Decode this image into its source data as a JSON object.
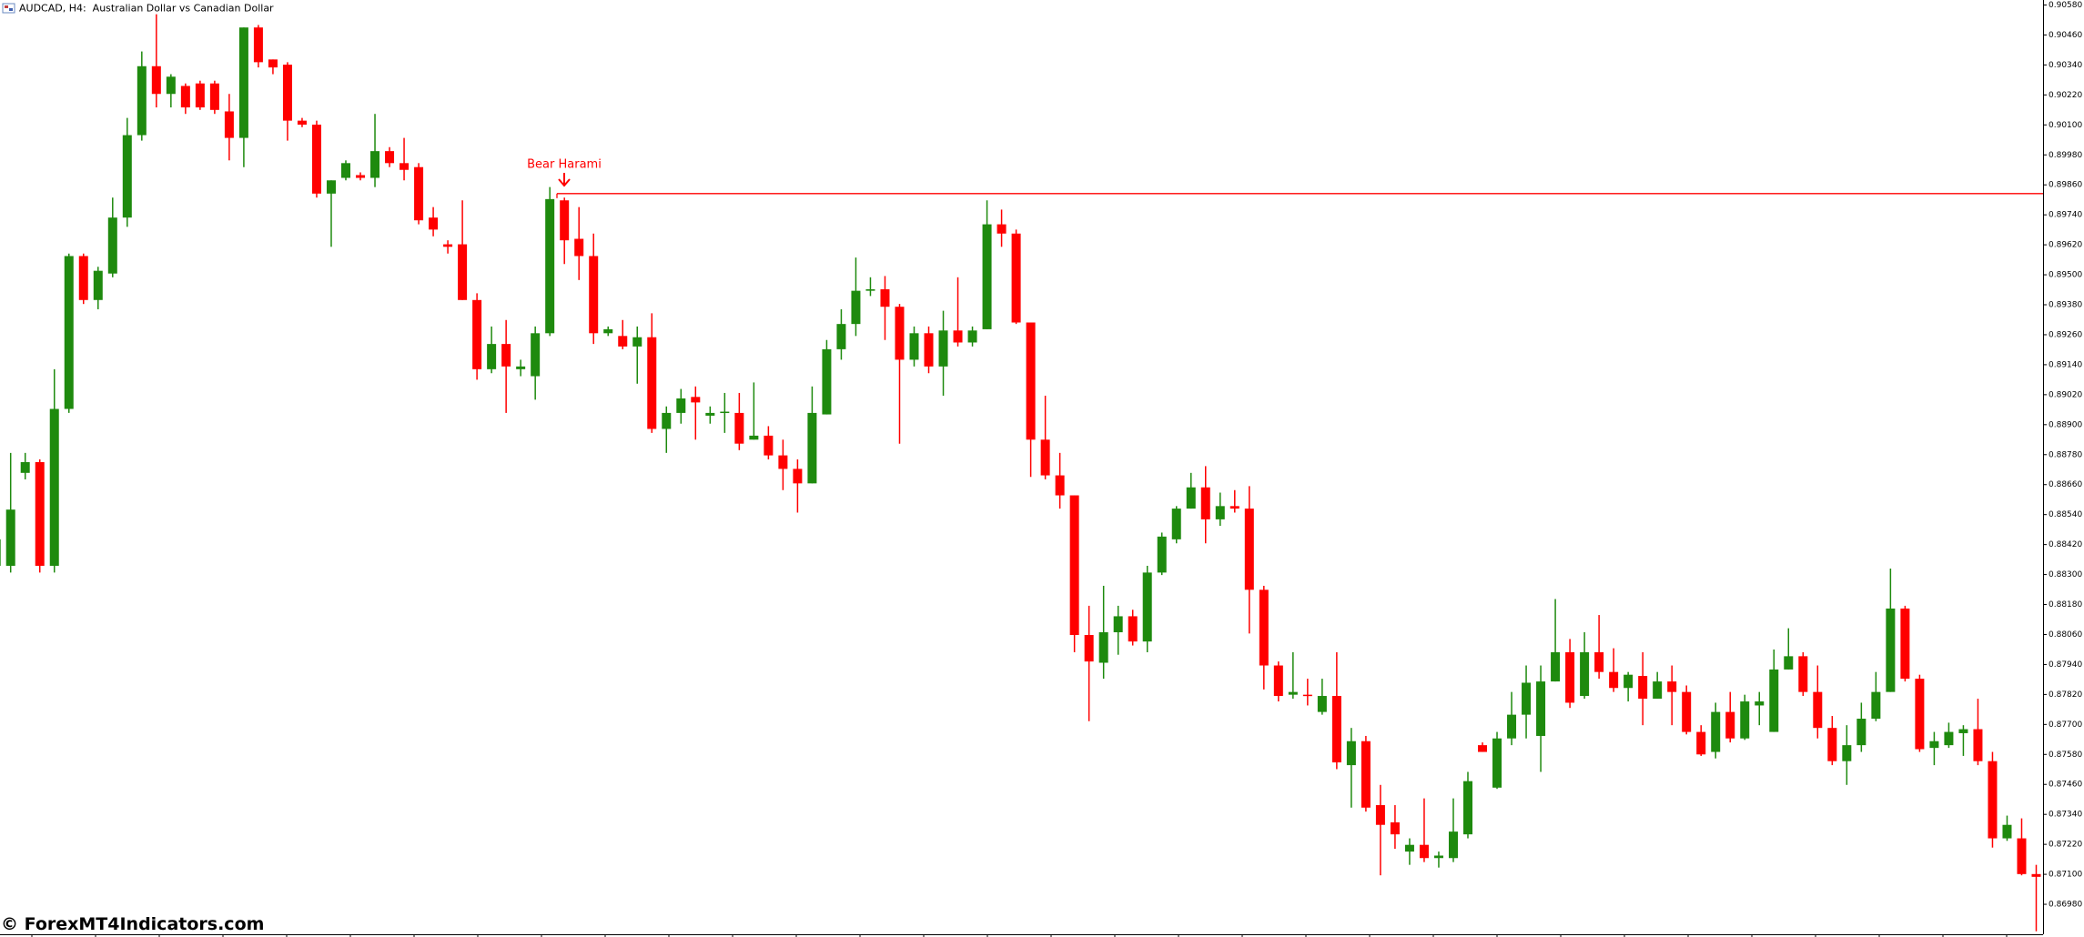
{
  "chart_data": {
    "type": "candlestick",
    "title": "AUDCAD, H4:  Australian Dollar vs Canadian Dollar",
    "annotation": "Bear Harami",
    "up_color": "#1e8a0e",
    "down_color": "#ff0000",
    "ylim": [
      0.906,
      0.8686
    ],
    "yticks": [
      {
        "value": 0.9058,
        "label": "0.90580"
      },
      {
        "value": 0.9046,
        "label": "0.90460"
      },
      {
        "value": 0.9034,
        "label": "0.90340"
      },
      {
        "value": 0.9022,
        "label": "0.90220"
      },
      {
        "value": 0.901,
        "label": "0.90100"
      },
      {
        "value": 0.8998,
        "label": "0.89980"
      },
      {
        "value": 0.8986,
        "label": "0.89860"
      },
      {
        "value": 0.8974,
        "label": "0.89740"
      },
      {
        "value": 0.8962,
        "label": "0.89620"
      },
      {
        "value": 0.895,
        "label": "0.89500"
      },
      {
        "value": 0.8938,
        "label": "0.89380"
      },
      {
        "value": 0.8926,
        "label": "0.89260"
      },
      {
        "value": 0.8914,
        "label": "0.89140"
      },
      {
        "value": 0.8902,
        "label": "0.89020"
      },
      {
        "value": 0.889,
        "label": "0.88900"
      },
      {
        "value": 0.8878,
        "label": "0.88780"
      },
      {
        "value": 0.8866,
        "label": "0.88660"
      },
      {
        "value": 0.8854,
        "label": "0.88540"
      },
      {
        "value": 0.8842,
        "label": "0.88420"
      },
      {
        "value": 0.883,
        "label": "0.88300"
      },
      {
        "value": 0.8818,
        "label": "0.88180"
      },
      {
        "value": 0.8806,
        "label": "0.88060"
      },
      {
        "value": 0.8794,
        "label": "0.87940"
      },
      {
        "value": 0.8782,
        "label": "0.87820"
      },
      {
        "value": 0.877,
        "label": "0.87700"
      },
      {
        "value": 0.8758,
        "label": "0.87580"
      },
      {
        "value": 0.8746,
        "label": "0.87460"
      },
      {
        "value": 0.8734,
        "label": "0.87340"
      },
      {
        "value": 0.8722,
        "label": "0.87220"
      },
      {
        "value": 0.871,
        "label": "0.87100"
      },
      {
        "value": 0.8698,
        "label": "0.86980"
      }
    ],
    "hline": {
      "value": 0.89825,
      "color": "#ff0000"
    },
    "open": [
      0.88335,
      0.88335,
      0.88707,
      0.8875,
      0.88335,
      0.88963,
      0.89575,
      0.89399,
      0.89505,
      0.89729,
      0.90059,
      0.90335,
      0.90224,
      0.90256,
      0.90266,
      0.90266,
      0.90154,
      0.90048,
      0.9049,
      0.90362,
      0.90341,
      0.90117,
      0.90101,
      0.89825,
      0.89888,
      0.89899,
      0.89888,
      0.89995,
      0.89947,
      0.89931,
      0.89729,
      0.89622,
      0.89622,
      0.89399,
      0.89122,
      0.89223,
      0.89122,
      0.89094,
      0.89266,
      0.89798,
      0.89644,
      0.89575,
      0.89266,
      0.89255,
      0.89213,
      0.8925,
      0.88883,
      0.88947,
      0.89011,
      0.88936,
      0.88947,
      0.88947,
      0.8884,
      0.88856,
      0.88777,
      0.88723,
      0.88665,
      0.88941,
      0.89202,
      0.89303,
      0.89436,
      0.89442,
      0.89372,
      0.8916,
      0.89266,
      0.89133,
      0.89277,
      0.89229,
      0.89282,
      0.89702,
      0.89665,
      0.89309,
      0.8884,
      0.88697,
      0.88617,
      0.88058,
      0.87947,
      0.88069,
      0.88133,
      0.88032,
      0.88308,
      0.88441,
      0.88564,
      0.88649,
      0.88521,
      0.88574,
      0.88564,
      0.88239,
      0.87936,
      0.87819,
      0.87819,
      0.8775,
      0.87814,
      0.87537,
      0.87633,
      0.87377,
      0.87308,
      0.87191,
      0.87218,
      0.87165,
      0.87165,
      0.8726,
      0.87617,
      0.87447,
      0.87644,
      0.87739,
      0.87654,
      0.87872,
      0.87989,
      0.87814,
      0.87989,
      0.8791,
      0.87846,
      0.87894,
      0.87803,
      0.87872,
      0.8783,
      0.8767,
      0.8759,
      0.8775,
      0.87644,
      0.87776,
      0.8767,
      0.8792,
      0.87973,
      0.8783,
      0.87686,
      0.87553,
      0.87617,
      0.87723,
      0.8783,
      0.88164,
      0.87883,
      0.87606,
      0.87617,
      0.87665,
      0.87681,
      0.87553,
      0.87244,
      0.87244,
      0.87101
    ],
    "high": [
      0.88468,
      0.88787,
      0.88787,
      0.88761,
      0.89122,
      0.89585,
      0.89585,
      0.89532,
      0.89809,
      0.90128,
      0.90394,
      0.90543,
      0.90303,
      0.90266,
      0.90277,
      0.90277,
      0.90224,
      0.9049,
      0.905,
      0.90362,
      0.90351,
      0.90128,
      0.90117,
      0.89878,
      0.89958,
      0.8991,
      0.90144,
      0.90011,
      0.90048,
      0.89947,
      0.89771,
      0.89638,
      0.89798,
      0.89426,
      0.89293,
      0.89319,
      0.8916,
      0.89293,
      0.89851,
      0.89809,
      0.89771,
      0.89665,
      0.89293,
      0.89319,
      0.89293,
      0.89346,
      0.88973,
      0.89043,
      0.89053,
      0.88973,
      0.89027,
      0.89027,
      0.89069,
      0.88894,
      0.8884,
      0.88761,
      0.89053,
      0.89239,
      0.89362,
      0.89569,
      0.8949,
      0.89495,
      0.89383,
      0.89293,
      0.89293,
      0.89356,
      0.8949,
      0.89293,
      0.89798,
      0.89761,
      0.89681,
      0.89309,
      0.89016,
      0.88787,
      0.88617,
      0.88175,
      0.88255,
      0.88175,
      0.88159,
      0.88335,
      0.88468,
      0.88574,
      0.88707,
      0.88734,
      0.88628,
      0.88638,
      0.88654,
      0.88255,
      0.87952,
      0.87989,
      0.87883,
      0.87883,
      0.87989,
      0.87686,
      0.87654,
      0.87458,
      0.87377,
      0.87244,
      0.87404,
      0.87191,
      0.87404,
      0.8751,
      0.87628,
      0.8767,
      0.8783,
      0.87936,
      0.87936,
      0.88202,
      0.88042,
      0.88069,
      0.88138,
      0.88005,
      0.8791,
      0.87989,
      0.8791,
      0.87936,
      0.87856,
      0.87697,
      0.87787,
      0.8783,
      0.87819,
      0.8783,
      0.88,
      0.88085,
      0.87989,
      0.87936,
      0.87734,
      0.87697,
      0.87787,
      0.8791,
      0.88324,
      0.88175,
      0.87899,
      0.8767,
      0.87707,
      0.87697,
      0.87803,
      0.8759,
      0.87335,
      0.87324,
      0.87138
    ],
    "low": [
      0.88308,
      0.88308,
      0.88681,
      0.88308,
      0.88308,
      0.88947,
      0.89383,
      0.89362,
      0.8949,
      0.89692,
      0.90037,
      0.9017,
      0.9017,
      0.90144,
      0.9016,
      0.90144,
      0.89958,
      0.89931,
      0.9033,
      0.90303,
      0.90037,
      0.90091,
      0.89809,
      0.89612,
      0.89878,
      0.89878,
      0.89851,
      0.89931,
      0.89878,
      0.89702,
      0.89654,
      0.89585,
      0.89399,
      0.8908,
      0.89106,
      0.88947,
      0.89094,
      0.89,
      0.89255,
      0.89543,
      0.89479,
      0.89223,
      0.89255,
      0.89202,
      0.89064,
      0.88867,
      0.88787,
      0.88904,
      0.8884,
      0.88904,
      0.88867,
      0.88798,
      0.8884,
      0.88761,
      0.88638,
      0.88548,
      0.88665,
      0.88941,
      0.8916,
      0.89255,
      0.89415,
      0.89239,
      0.88824,
      0.89133,
      0.89106,
      0.89016,
      0.89213,
      0.89213,
      0.89282,
      0.89612,
      0.89303,
      0.88691,
      0.88681,
      0.88564,
      0.87989,
      0.87713,
      0.87883,
      0.87979,
      0.88016,
      0.87989,
      0.88298,
      0.88425,
      0.88564,
      0.88425,
      0.88495,
      0.88548,
      0.88064,
      0.8784,
      0.87792,
      0.87803,
      0.87776,
      0.87739,
      0.87521,
      0.87367,
      0.87351,
      0.87096,
      0.87202,
      0.87138,
      0.87149,
      0.87127,
      0.87149,
      0.87244,
      0.8759,
      0.87442,
      0.87617,
      0.87644,
      0.8751,
      0.87872,
      0.87766,
      0.87803,
      0.87883,
      0.8783,
      0.87792,
      0.87697,
      0.87803,
      0.87697,
      0.8766,
      0.87574,
      0.87564,
      0.87628,
      0.87638,
      0.87697,
      0.8767,
      0.8792,
      0.87814,
      0.87644,
      0.87537,
      0.87458,
      0.8759,
      0.87713,
      0.8783,
      0.87872,
      0.8759,
      0.87537,
      0.87606,
      0.87574,
      0.87537,
      0.87207,
      0.87234,
      0.87096,
      0.86872
    ],
    "close": [
      0.88441,
      0.8856,
      0.8875,
      0.88335,
      0.88963,
      0.89575,
      0.89399,
      0.89516,
      0.89729,
      0.90059,
      0.90335,
      0.90224,
      0.90293,
      0.9017,
      0.9017,
      0.9016,
      0.90048,
      0.9049,
      0.90351,
      0.9033,
      0.90117,
      0.90101,
      0.89825,
      0.89878,
      0.89947,
      0.89888,
      0.89995,
      0.89947,
      0.8992,
      0.89718,
      0.89681,
      0.89612,
      0.89399,
      0.89122,
      0.89223,
      0.89133,
      0.89133,
      0.89266,
      0.89803,
      0.89638,
      0.89575,
      0.89266,
      0.89282,
      0.89213,
      0.8925,
      0.88883,
      0.88947,
      0.89005,
      0.88989,
      0.88947,
      0.88952,
      0.88824,
      0.88856,
      0.88777,
      0.88723,
      0.88665,
      0.88947,
      0.89202,
      0.89303,
      0.89436,
      0.89442,
      0.89372,
      0.8916,
      0.89266,
      0.89133,
      0.89277,
      0.89229,
      0.89277,
      0.89702,
      0.89665,
      0.89309,
      0.8884,
      0.88697,
      0.88617,
      0.88058,
      0.87952,
      0.88069,
      0.88133,
      0.88032,
      0.88308,
      0.88452,
      0.88564,
      0.88649,
      0.88521,
      0.88574,
      0.88564,
      0.88239,
      0.87936,
      0.87814,
      0.8783,
      0.87814,
      0.87814,
      0.87548,
      0.87633,
      0.87367,
      0.87298,
      0.8726,
      0.87218,
      0.87165,
      0.87175,
      0.87271,
      0.87473,
      0.8759,
      0.87644,
      0.87739,
      0.87867,
      0.87872,
      0.87989,
      0.87787,
      0.87989,
      0.8791,
      0.87846,
      0.87899,
      0.87803,
      0.87872,
      0.8783,
      0.8767,
      0.8758,
      0.8775,
      0.87644,
      0.87792,
      0.87792,
      0.8792,
      0.87973,
      0.8783,
      0.87686,
      0.87553,
      0.87617,
      0.87723,
      0.8783,
      0.88164,
      0.87883,
      0.87601,
      0.87633,
      0.8767,
      0.87681,
      0.87553,
      0.87244,
      0.87298,
      0.87101,
      0.8709
    ]
  },
  "watermark": "© ForexMT4Indicators.com"
}
